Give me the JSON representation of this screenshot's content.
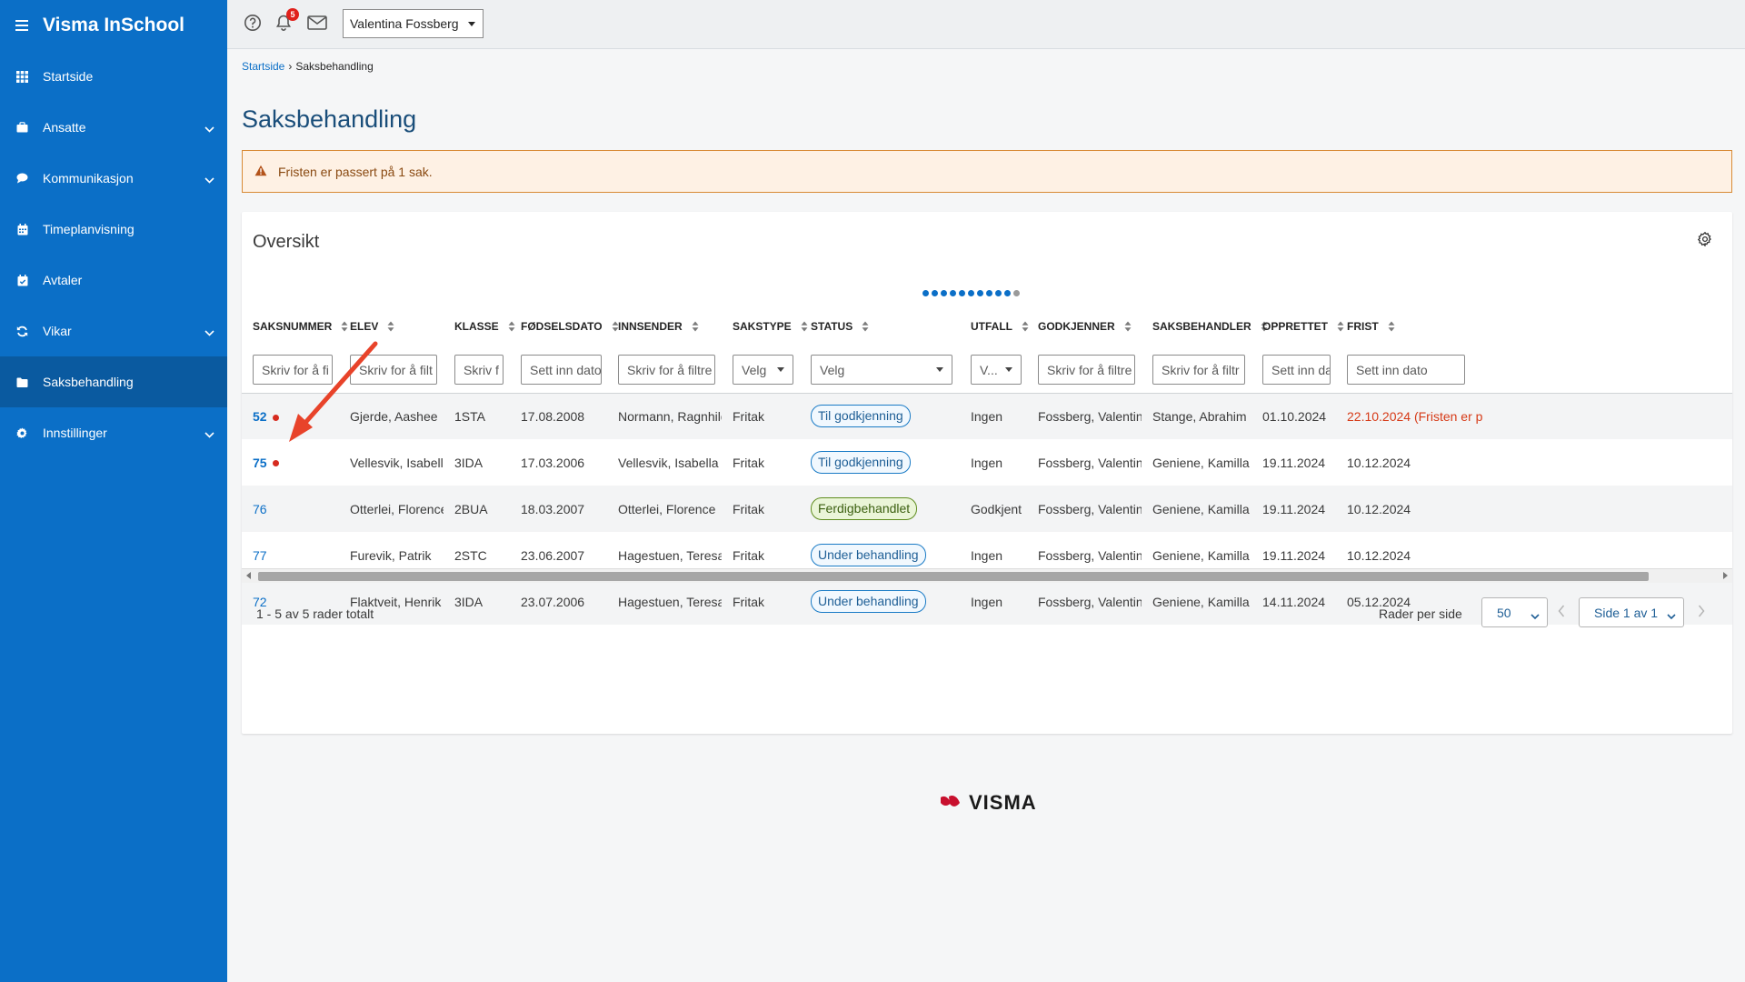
{
  "app": {
    "title": "Visma InSchool"
  },
  "sidebar": {
    "items": [
      {
        "label": "Startside",
        "icon": "grid-icon",
        "expandable": false,
        "active": false
      },
      {
        "label": "Ansatte",
        "icon": "briefcase-icon",
        "expandable": true,
        "active": false
      },
      {
        "label": "Kommunikasjon",
        "icon": "chat-bubble-icon",
        "expandable": true,
        "active": false
      },
      {
        "label": "Timeplanvisning",
        "icon": "calendar-icon",
        "expandable": false,
        "active": false
      },
      {
        "label": "Avtaler",
        "icon": "calendar-check-icon",
        "expandable": false,
        "active": false
      },
      {
        "label": "Vikar",
        "icon": "refresh-icon",
        "expandable": true,
        "active": false
      },
      {
        "label": "Saksbehandling",
        "icon": "folder-icon",
        "expandable": false,
        "active": true
      },
      {
        "label": "Innstillinger",
        "icon": "gear-icon",
        "expandable": true,
        "active": false
      }
    ]
  },
  "topbar": {
    "notification_count": "5",
    "user_name": "Valentina Fossberg"
  },
  "breadcrumb": {
    "home": "Startside",
    "current": "Saksbehandling"
  },
  "page": {
    "title": "Saksbehandling"
  },
  "alert": {
    "text": "Fristen er passert på 1 sak."
  },
  "overview": {
    "title": "Oversikt",
    "columns": [
      "SAKSNUMMER",
      "ELEV",
      "KLASSE",
      "FØDSELSDATO",
      "INNSENDER",
      "SAKSTYPE",
      "STATUS",
      "UTFALL",
      "GODKJENNER",
      "SAKSBEHANDLER",
      "OPPRETTET",
      "FRIST"
    ],
    "filters": [
      "Skriv for å fi",
      "Skriv for å filt",
      "Skriv f",
      "Sett inn dato",
      "Skriv for å filtre",
      "Velg",
      "Velg",
      "V...",
      "Skriv for å filtre",
      "Skriv for å filtr",
      "Sett inn da",
      "Sett inn dato"
    ],
    "rows": [
      {
        "nr": "52",
        "elev": "Gjerde, Aashee",
        "klasse": "1STA",
        "fodselsdato": "17.08.2008",
        "innsender": "Normann, Ragnhild",
        "sakstype": "Fritak",
        "status": "Til godkjenning",
        "status_color": "blue",
        "utfall": "Ingen",
        "godkjenner": "Fossberg, Valentina",
        "saksbehandler": "Stange, Abrahim",
        "opprettet": "01.10.2024",
        "frist": "22.10.2024 (Fristen er p",
        "overdue": true,
        "new": true
      },
      {
        "nr": "75",
        "elev": "Vellesvik, Isabella",
        "klasse": "3IDA",
        "fodselsdato": "17.03.2006",
        "innsender": "Vellesvik, Isabella",
        "sakstype": "Fritak",
        "status": "Til godkjenning",
        "status_color": "blue",
        "utfall": "Ingen",
        "godkjenner": "Fossberg, Valentina",
        "saksbehandler": "Geniene, Kamilla",
        "opprettet": "19.11.2024",
        "frist": "10.12.2024",
        "overdue": false,
        "new": true
      },
      {
        "nr": "76",
        "elev": "Otterlei, Florence",
        "klasse": "2BUA",
        "fodselsdato": "18.03.2007",
        "innsender": "Otterlei, Florence",
        "sakstype": "Fritak",
        "status": "Ferdigbehandlet",
        "status_color": "green",
        "utfall": "Godkjent",
        "godkjenner": "Fossberg, Valentina",
        "saksbehandler": "Geniene, Kamilla",
        "opprettet": "19.11.2024",
        "frist": "10.12.2024",
        "overdue": false,
        "new": false
      },
      {
        "nr": "77",
        "elev": "Furevik, Patrik",
        "klasse": "2STC",
        "fodselsdato": "23.06.2007",
        "innsender": "Hagestuen, Teresa",
        "sakstype": "Fritak",
        "status": "Under behandling",
        "status_color": "blue",
        "utfall": "Ingen",
        "godkjenner": "Fossberg, Valentina",
        "saksbehandler": "Geniene, Kamilla",
        "opprettet": "19.11.2024",
        "frist": "10.12.2024",
        "overdue": false,
        "new": false
      },
      {
        "nr": "72",
        "elev": "Flaktveit, Henrik",
        "klasse": "3IDA",
        "fodselsdato": "23.07.2006",
        "innsender": "Hagestuen, Teresa",
        "sakstype": "Fritak",
        "status": "Under behandling",
        "status_color": "blue",
        "utfall": "Ingen",
        "godkjenner": "Fossberg, Valentina",
        "saksbehandler": "Geniene, Kamilla",
        "opprettet": "14.11.2024",
        "frist": "05.12.2024",
        "overdue": false,
        "new": false
      }
    ],
    "footer_count": "1 - 5 av 5 rader totalt",
    "rows_per_page_label": "Rader per side",
    "rows_per_page": "50",
    "page_label": "Side 1 av 1"
  },
  "footer": {
    "logo_text": "VISMA"
  },
  "colors": {
    "sidebar": "#0b6fc7",
    "accent": "#0b6fc7",
    "overdue": "#d63a17",
    "alert_bg": "#fef1e4",
    "arrow": "#e8432a"
  }
}
